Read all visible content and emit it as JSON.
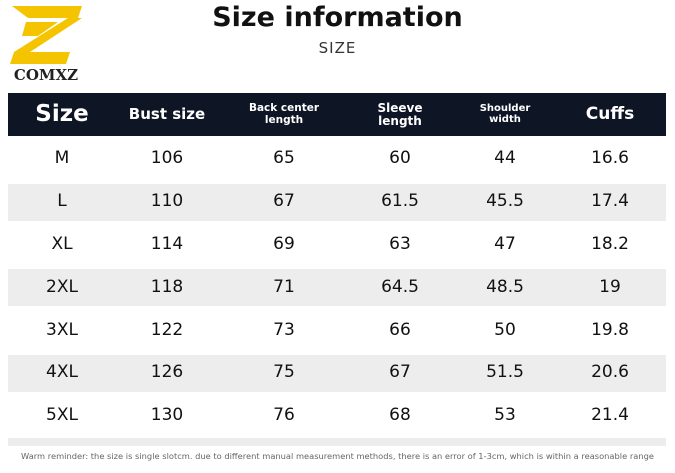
{
  "logo": {
    "text": "COMXZ"
  },
  "header": {
    "title": "Size information",
    "subtitle": "SIZE"
  },
  "table": {
    "columns": [
      "Size",
      "Bust size",
      "Back center length",
      "Sleeve length",
      "Shoulder width",
      "Cuffs"
    ],
    "rows": [
      [
        "M",
        106,
        65,
        60,
        44,
        16.6
      ],
      [
        "L",
        110,
        67,
        61.5,
        45.5,
        17.4
      ],
      [
        "XL",
        114,
        69,
        63,
        47,
        18.2
      ],
      [
        "2XL",
        118,
        71,
        64.5,
        48.5,
        19
      ],
      [
        "3XL",
        122,
        73,
        66,
        50,
        19.8
      ],
      [
        "4XL",
        126,
        75,
        67,
        51.5,
        20.6
      ],
      [
        "5XL",
        130,
        76,
        68,
        53,
        21.4
      ]
    ]
  },
  "footer": {
    "note": "Warm reminder: the size is single slotcm. due to different manual measurement methods, there is an error of 1-3cm, which is within a reasonable range"
  }
}
